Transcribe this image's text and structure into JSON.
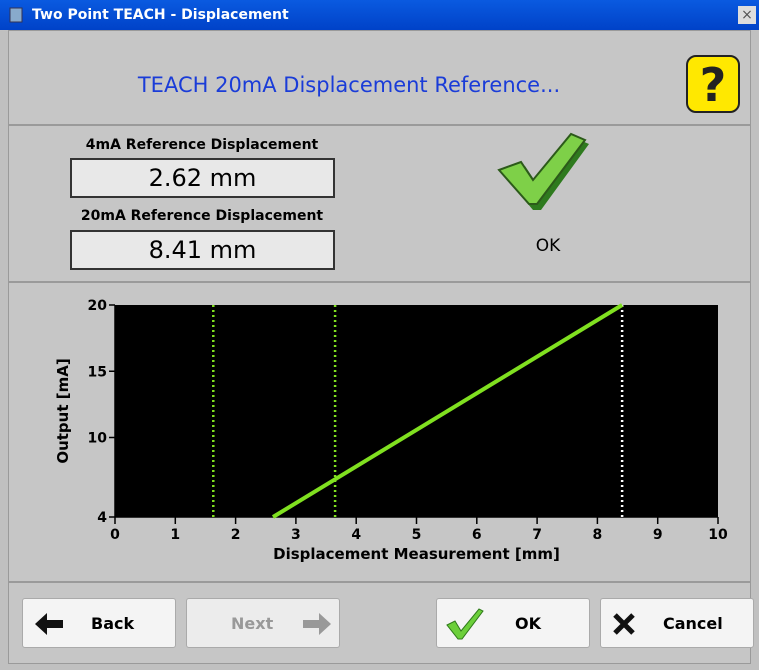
{
  "window": {
    "title": "Two Point TEACH - Displacement",
    "close": "×"
  },
  "header": {
    "title": "TEACH 20mA Displacement Reference...",
    "help": "?"
  },
  "fields": [
    {
      "label": "4mA Reference Displacement",
      "value": "2.62 mm"
    },
    {
      "label": "20mA Reference Displacement",
      "value": "8.41 mm"
    }
  ],
  "status": "OK",
  "chart_data": {
    "type": "line",
    "xlabel": "Displacement Measurement [mm]",
    "ylabel": "Output [mA]",
    "x": [
      2.62,
      8.41
    ],
    "series": [
      {
        "color": "#80e020",
        "values": [
          4,
          20
        ]
      }
    ],
    "vlines": [
      {
        "x": 1.63,
        "color": "#80e020"
      },
      {
        "x": 3.65,
        "color": "#80e020"
      },
      {
        "x": 8.41,
        "color": "#ffffff"
      }
    ],
    "xlim": [
      0,
      10
    ],
    "ylim": [
      4,
      20
    ],
    "xticks": [
      0,
      1,
      2,
      3,
      4,
      5,
      6,
      7,
      8,
      9,
      10
    ],
    "yticks": [
      4,
      10,
      15,
      20
    ],
    "background": "#000000"
  },
  "buttons": [
    {
      "label": "Back",
      "enabled": true
    },
    {
      "label": "Next",
      "enabled": false
    },
    {
      "label": "OK",
      "enabled": true
    },
    {
      "label": "Cancel",
      "enabled": true
    }
  ]
}
